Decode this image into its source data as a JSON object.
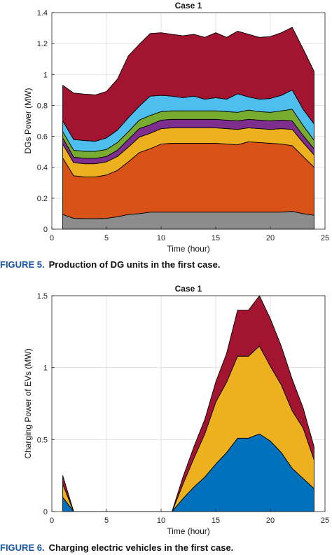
{
  "chart_data": [
    {
      "type": "area",
      "stacked": true,
      "title": "Case 1",
      "xlabel": "Time (hour)",
      "ylabel": "DGs Power (MW)",
      "xlim": [
        0,
        25
      ],
      "ylim": [
        0,
        1.4
      ],
      "xticks": [
        "0",
        "5",
        "10",
        "15",
        "20",
        "25"
      ],
      "yticks": [
        "0",
        "0.2",
        "0.4",
        "0.6",
        "0.8",
        "1",
        "1.2",
        "1.4"
      ],
      "grid": true,
      "x": [
        1,
        2,
        3,
        4,
        5,
        6,
        7,
        8,
        9,
        10,
        11,
        12,
        13,
        14,
        15,
        16,
        17,
        18,
        19,
        20,
        21,
        22,
        23,
        24
      ],
      "series": [
        {
          "color": "#8c8c8c",
          "values": [
            0.095,
            0.07,
            0.068,
            0.068,
            0.07,
            0.08,
            0.095,
            0.1,
            0.11,
            0.11,
            0.11,
            0.11,
            0.11,
            0.11,
            0.11,
            0.11,
            0.11,
            0.11,
            0.11,
            0.11,
            0.11,
            0.115,
            0.1,
            0.09
          ]
        },
        {
          "color": "#d95319",
          "values": [
            0.365,
            0.275,
            0.27,
            0.27,
            0.28,
            0.3,
            0.34,
            0.395,
            0.41,
            0.44,
            0.445,
            0.445,
            0.445,
            0.445,
            0.445,
            0.44,
            0.435,
            0.455,
            0.45,
            0.445,
            0.44,
            0.425,
            0.37,
            0.31
          ]
        },
        {
          "color": "#edb120",
          "values": [
            0.09,
            0.085,
            0.085,
            0.085,
            0.085,
            0.09,
            0.095,
            0.1,
            0.1,
            0.1,
            0.1,
            0.1,
            0.1,
            0.1,
            0.1,
            0.1,
            0.1,
            0.09,
            0.09,
            0.09,
            0.1,
            0.105,
            0.09,
            0.08
          ]
        },
        {
          "color": "#7e2f8e",
          "values": [
            0.04,
            0.035,
            0.035,
            0.035,
            0.035,
            0.04,
            0.05,
            0.055,
            0.055,
            0.055,
            0.055,
            0.055,
            0.055,
            0.055,
            0.055,
            0.055,
            0.055,
            0.055,
            0.055,
            0.055,
            0.055,
            0.055,
            0.045,
            0.04
          ]
        },
        {
          "color": "#77ac30",
          "values": [
            0.04,
            0.045,
            0.045,
            0.045,
            0.045,
            0.05,
            0.05,
            0.055,
            0.06,
            0.055,
            0.055,
            0.055,
            0.055,
            0.055,
            0.055,
            0.055,
            0.055,
            0.06,
            0.055,
            0.055,
            0.06,
            0.075,
            0.065,
            0.055
          ]
        },
        {
          "color": "#4dbeee",
          "values": [
            0.07,
            0.07,
            0.07,
            0.065,
            0.075,
            0.08,
            0.09,
            0.09,
            0.125,
            0.105,
            0.095,
            0.085,
            0.095,
            0.075,
            0.085,
            0.08,
            0.12,
            0.085,
            0.08,
            0.09,
            0.1,
            0.125,
            0.105,
            0.105
          ]
        },
        {
          "color": "#a2142f",
          "values": [
            0.23,
            0.3,
            0.3,
            0.3,
            0.3,
            0.33,
            0.4,
            0.4,
            0.405,
            0.405,
            0.4,
            0.4,
            0.4,
            0.4,
            0.42,
            0.4,
            0.405,
            0.405,
            0.4,
            0.4,
            0.405,
            0.405,
            0.39,
            0.34
          ]
        }
      ]
    },
    {
      "type": "area",
      "stacked": true,
      "title": "Case 1",
      "xlabel": "Time (hour)",
      "ylabel": "Charging Power of EVs (MW)",
      "xlim": [
        0,
        25
      ],
      "ylim": [
        0,
        1.5
      ],
      "xticks": [
        "0",
        "5",
        "10",
        "15",
        "20",
        "25"
      ],
      "yticks": [
        "0",
        "0.5",
        "1",
        "1.5"
      ],
      "grid": true,
      "x": [
        1,
        2,
        3,
        4,
        5,
        6,
        7,
        8,
        9,
        10,
        11,
        12,
        13,
        14,
        15,
        16,
        17,
        18,
        19,
        20,
        21,
        22,
        23,
        24
      ],
      "series": [
        {
          "color": "#0072bd",
          "values": [
            0.1,
            0,
            0,
            0,
            0,
            0,
            0,
            0,
            0,
            0,
            0,
            0.09,
            0.17,
            0.24,
            0.33,
            0.41,
            0.51,
            0.51,
            0.54,
            0.49,
            0.41,
            0.3,
            0.23,
            0.16
          ]
        },
        {
          "color": "#edb120",
          "values": [
            0.09,
            0,
            0,
            0,
            0,
            0,
            0,
            0,
            0,
            0,
            0,
            0.1,
            0.2,
            0.3,
            0.43,
            0.49,
            0.57,
            0.57,
            0.61,
            0.52,
            0.47,
            0.4,
            0.35,
            0.2
          ]
        },
        {
          "color": "#a2142f",
          "values": [
            0.06,
            0,
            0,
            0,
            0,
            0,
            0,
            0,
            0,
            0,
            0,
            0.05,
            0.08,
            0.1,
            0.14,
            0.2,
            0.32,
            0.32,
            0.35,
            0.33,
            0.27,
            0.22,
            0.14,
            0.09
          ]
        }
      ]
    }
  ],
  "captions": [
    {
      "number": "FIGURE 5.",
      "text": "Production of DG units in the first case."
    },
    {
      "number": "FIGURE 6.",
      "text": "Charging electric vehicles in the first case."
    }
  ]
}
